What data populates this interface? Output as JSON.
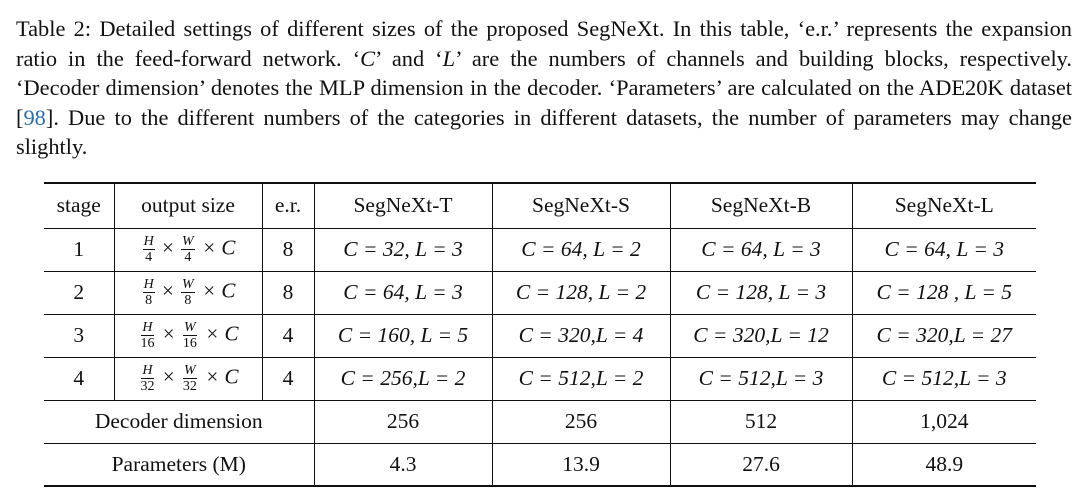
{
  "caption": {
    "part1": "Table 2: Detailed settings of different sizes of the proposed SegNeXt. In this table, ‘e.r.’ represents the expansion ratio in the feed-forward network. ‘",
    "sym_c": "C",
    "part2": "’ and ‘",
    "sym_l": "L",
    "part3": "’ are the numbers of channels and building blocks, respectively. ‘Decoder dimension’ denotes the MLP dimension in the decoder. ‘Parameters’ are calculated on the ADE20K dataset [",
    "ref": "98",
    "part4": "]. Due to the different numbers of the categories in different datasets, the number of parameters may change slightly."
  },
  "table": {
    "headers": {
      "stage": "stage",
      "output_size": "output size",
      "er": "e.r.",
      "t": "SegNeXt-T",
      "s": "SegNeXt-S",
      "b": "SegNeXt-B",
      "l": "SegNeXt-L"
    },
    "rows": [
      {
        "stage": "1",
        "h_num": "H",
        "h_den": "4",
        "w_num": "W",
        "w_den": "4",
        "times_c": "× C",
        "times": "×",
        "er": "8",
        "t": "C = 32, L = 3",
        "s": "C = 64, L = 2",
        "b": "C = 64, L = 3",
        "l": "C = 64, L = 3"
      },
      {
        "stage": "2",
        "h_num": "H",
        "h_den": "8",
        "w_num": "W",
        "w_den": "8",
        "times_c": "× C",
        "times": "×",
        "er": "8",
        "t": "C = 64, L = 3",
        "s": "C = 128, L = 2",
        "b": "C = 128, L = 3",
        "l": "C = 128 , L = 5"
      },
      {
        "stage": "3",
        "h_num": "H",
        "h_den": "16",
        "w_num": "W",
        "w_den": "16",
        "times_c": "× C",
        "times": "×",
        "er": "4",
        "t": "C = 160, L = 5",
        "s": "C = 320,L = 4",
        "b": "C = 320,L = 12",
        "l": "C = 320,L = 27"
      },
      {
        "stage": "4",
        "h_num": "H",
        "h_den": "32",
        "w_num": "W",
        "w_den": "32",
        "times_c": "× C",
        "times": "×",
        "er": "4",
        "t": "C = 256,L = 2",
        "s": "C = 512,L = 2",
        "b": "C = 512,L = 3",
        "l": "C = 512,L = 3"
      }
    ],
    "decoder": {
      "label": "Decoder dimension",
      "t": "256",
      "s": "256",
      "b": "512",
      "l": "1,024"
    },
    "params": {
      "label": "Parameters (M)",
      "t": "4.3",
      "s": "13.9",
      "b": "27.6",
      "l": "48.9"
    }
  }
}
